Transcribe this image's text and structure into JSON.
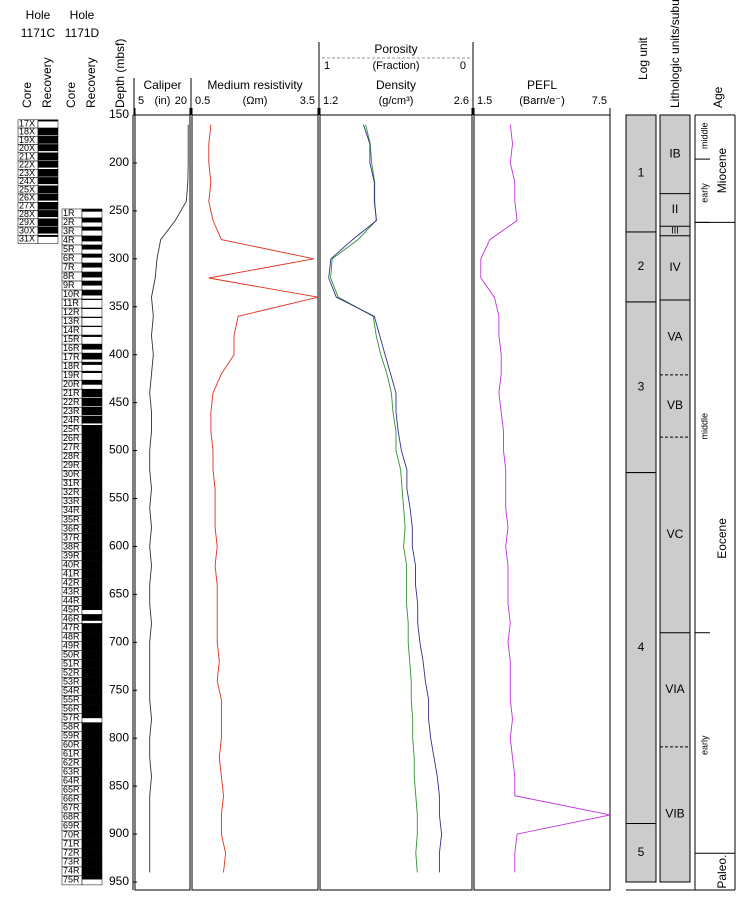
{
  "chart_data": {
    "type": "well_log",
    "depth_label": "Depth (mbsf)",
    "ylim": [
      150,
      950
    ],
    "yticks": [
      150,
      200,
      250,
      300,
      350,
      400,
      450,
      500,
      550,
      600,
      650,
      700,
      750,
      800,
      850,
      900,
      950
    ],
    "depth": [
      160,
      180,
      200,
      220,
      240,
      260,
      280,
      300,
      320,
      340,
      360,
      380,
      400,
      420,
      440,
      460,
      480,
      500,
      520,
      540,
      560,
      580,
      600,
      620,
      640,
      660,
      680,
      700,
      720,
      740,
      760,
      780,
      800,
      820,
      840,
      860,
      880,
      900,
      920,
      940
    ],
    "holes": [
      {
        "title": "Hole",
        "name": "1171C",
        "col1": "Core",
        "col2": "Recovery",
        "top": 155,
        "core_length": 8.6,
        "cores": [
          "17X",
          "18X",
          "19X",
          "20X",
          "21X",
          "22X",
          "23X",
          "24X",
          "25X",
          "26X",
          "27X",
          "28X",
          "29X",
          "30X",
          "31X"
        ],
        "recovery": [
          0.2,
          0.9,
          0.9,
          0.8,
          0.9,
          0.8,
          0.9,
          0.8,
          0.9,
          0.8,
          0.9,
          0.8,
          0.9,
          0.8,
          0.2
        ]
      },
      {
        "title": "Hole",
        "name": "1171D",
        "col1": "Core",
        "col2": "Recovery",
        "top": 248,
        "core_length": 9.4,
        "cores": [
          "1R",
          "2R",
          "3R",
          "4R",
          "5R",
          "6R",
          "7R",
          "8R",
          "9R",
          "10R",
          "11R",
          "12R",
          "13R",
          "14R",
          "15R",
          "16R",
          "17R",
          "18R",
          "19R",
          "20R",
          "21R",
          "22R",
          "23R",
          "24R",
          "25R",
          "26R",
          "27R",
          "28R",
          "29R",
          "30R",
          "31R",
          "32R",
          "33R",
          "34R",
          "35R",
          "36R",
          "37R",
          "38R",
          "39R",
          "40R",
          "41R",
          "42R",
          "43R",
          "44R",
          "45R",
          "46R",
          "47R",
          "48R",
          "49R",
          "50R",
          "51R",
          "52R",
          "53R",
          "54R",
          "55R",
          "56R",
          "57R",
          "58R",
          "59R",
          "60R",
          "61R",
          "62R",
          "63R",
          "64R",
          "65R",
          "66R",
          "67R",
          "68R",
          "69R",
          "70R",
          "71R",
          "72R",
          "73R",
          "74R",
          "75R"
        ],
        "recovery": [
          0.3,
          0.5,
          0.4,
          0.6,
          0.5,
          0.4,
          0.5,
          0.6,
          0.5,
          0.6,
          0.1,
          0.1,
          0.1,
          0.1,
          0.2,
          0.6,
          0.7,
          0.3,
          0.2,
          0.5,
          0.9,
          0.9,
          0.9,
          0.8,
          1,
          1,
          1,
          1,
          1,
          1,
          1,
          1,
          1,
          1,
          1,
          1,
          1,
          1,
          1,
          1,
          1,
          1,
          1,
          1,
          0.5,
          0.7,
          1,
          1,
          1,
          1,
          1,
          1,
          1,
          1,
          1,
          1,
          0.5,
          1,
          1,
          1,
          1,
          1,
          1,
          1,
          1,
          1,
          1,
          1,
          1,
          1,
          1,
          1,
          1,
          1,
          0.4
        ]
      }
    ],
    "tracks": [
      {
        "title": "Caliper",
        "unit": "(in)",
        "xlim": [
          5,
          20
        ],
        "xticks": [
          5,
          20
        ],
        "color": "#333333",
        "values": [
          19.5,
          19.5,
          19.5,
          19.4,
          19,
          16,
          12,
          11,
          10.5,
          9.5,
          10,
          9.5,
          10,
          9.5,
          9,
          9.5,
          9.5,
          9,
          9,
          9.5,
          9,
          9.5,
          9,
          9.5,
          9,
          9,
          9.5,
          9,
          9,
          9,
          9,
          9.5,
          9,
          9,
          9.5,
          9,
          9,
          9,
          9,
          9
        ]
      },
      {
        "title": "Medium resistivity",
        "unit": "(Ωm)",
        "xlim": [
          0.5,
          3.5
        ],
        "xticks": [
          0.5,
          3.5
        ],
        "color": "#e03020",
        "values": [
          0.95,
          0.9,
          0.9,
          0.95,
          0.9,
          1,
          1.2,
          3.4,
          0.9,
          3.5,
          1.6,
          1.5,
          1.5,
          1.2,
          1,
          0.95,
          0.95,
          1,
          1,
          1.05,
          1.05,
          1.05,
          1.1,
          1.05,
          1.1,
          1.1,
          1.1,
          1.1,
          1.15,
          1.1,
          1.2,
          1.2,
          1.2,
          1.15,
          1.2,
          1.25,
          1.2,
          1.2,
          1.3,
          1.25
        ]
      },
      {
        "title": "Density",
        "unit": "(g/cm³)",
        "xlim": [
          1.2,
          2.6
        ],
        "xticks": [
          1.2,
          2.6
        ],
        "color": "#303090",
        "values": [
          1.6,
          1.66,
          1.66,
          1.7,
          1.7,
          1.72,
          1.5,
          1.3,
          1.28,
          1.35,
          1.7,
          1.75,
          1.8,
          1.85,
          1.9,
          1.9,
          1.92,
          1.95,
          2,
          2,
          2.03,
          2.05,
          2.05,
          2.08,
          2.08,
          2.1,
          2.1,
          2.12,
          2.15,
          2.17,
          2.2,
          2.2,
          2.22,
          2.25,
          2.28,
          2.3,
          2.3,
          2.32,
          2.3,
          2.3
        ]
      },
      {
        "title": "PEFL",
        "unit": "(Barn/e⁻)",
        "xlim": [
          1.5,
          7.5
        ],
        "xticks": [
          1.5,
          7.5
        ],
        "color": "#c030e0",
        "values": [
          3.1,
          3.2,
          3.1,
          3.3,
          3.3,
          3.4,
          2.2,
          1.8,
          1.8,
          2.4,
          2.6,
          2.6,
          2.7,
          2.7,
          2.6,
          2.7,
          2.8,
          2.8,
          2.9,
          2.9,
          2.9,
          3,
          2.9,
          3,
          3,
          3,
          3.1,
          3,
          3.1,
          3.1,
          3.1,
          3.2,
          3.1,
          3.2,
          3.3,
          3.3,
          7.5,
          3.4,
          3.3,
          3.3
        ]
      }
    ],
    "porosity": {
      "title": "Porosity",
      "unit": "(Fraction)",
      "xlim": [
        1,
        0
      ],
      "xticks": [
        1,
        0
      ],
      "color": "#309030",
      "values": [
        0.7,
        0.67,
        0.66,
        0.64,
        0.64,
        0.63,
        0.75,
        0.92,
        0.93,
        0.88,
        0.65,
        0.63,
        0.6,
        0.56,
        0.53,
        0.52,
        0.5,
        0.5,
        0.47,
        0.46,
        0.45,
        0.44,
        0.45,
        0.43,
        0.43,
        0.43,
        0.42,
        0.42,
        0.41,
        0.4,
        0.4,
        0.39,
        0.39,
        0.38,
        0.38,
        0.37,
        0.36,
        0.36,
        0.37,
        0.36
      ]
    },
    "log_units": {
      "title": "Log unit",
      "units": [
        {
          "label": "1",
          "top": 150,
          "bottom": 272
        },
        {
          "label": "2",
          "top": 272,
          "bottom": 345
        },
        {
          "label": "3",
          "top": 345,
          "bottom": 523
        },
        {
          "label": "4",
          "top": 523,
          "bottom": 889
        },
        {
          "label": "5",
          "top": 889,
          "bottom": 950
        }
      ]
    },
    "litho_units": {
      "title": "Lithologic units/subunits",
      "units": [
        {
          "label": "IB",
          "top": 150,
          "bottom": 232,
          "boundary": "solid"
        },
        {
          "label": "II",
          "top": 232,
          "bottom": 266,
          "boundary": "solid"
        },
        {
          "label": "III",
          "top": 266,
          "bottom": 276,
          "boundary": "solid"
        },
        {
          "label": "IV",
          "top": 276,
          "bottom": 343,
          "boundary": "solid"
        },
        {
          "label": "VA",
          "top": 343,
          "bottom": 421,
          "boundary": "solid"
        },
        {
          "label": "VB",
          "top": 421,
          "bottom": 486,
          "boundary": "dashed"
        },
        {
          "label": "VC",
          "top": 486,
          "bottom": 690,
          "boundary": "dashed"
        },
        {
          "label": "VIA",
          "top": 690,
          "bottom": 809,
          "boundary": "solid"
        },
        {
          "label": "VIB",
          "top": 809,
          "bottom": 950,
          "boundary": "dashed"
        }
      ]
    },
    "age": {
      "title": "Age",
      "sub": [
        {
          "label": "middle",
          "top": 150,
          "bottom": 196
        },
        {
          "label": "early",
          "top": 196,
          "bottom": 262
        },
        {
          "label": "middle",
          "top": 262,
          "bottom": 690
        },
        {
          "label": "early",
          "top": 690,
          "bottom": 920
        }
      ],
      "epochs": [
        {
          "label": "Miocene",
          "top": 150,
          "bottom": 262
        },
        {
          "label": "Eocene",
          "top": 262,
          "bottom": 920
        },
        {
          "label": "Paleo.",
          "top": 920,
          "bottom": 950
        }
      ]
    }
  }
}
